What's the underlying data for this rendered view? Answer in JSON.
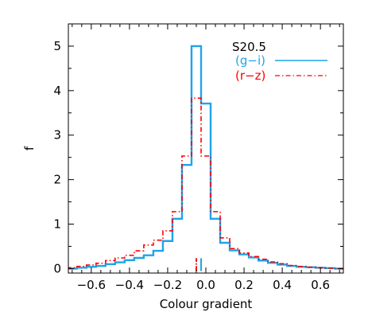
{
  "chart_data": {
    "type": "line",
    "style": "step-histogram",
    "title": "",
    "xlabel": "Colour gradient",
    "ylabel": "f",
    "xlim": [
      -0.72,
      0.72
    ],
    "ylim": [
      -0.1,
      5.5
    ],
    "x_ticks": [
      "-0.6",
      "-0.4",
      "-0.2",
      "0.0",
      "0.2",
      "0.4",
      "0.6"
    ],
    "x_tick_values": [
      -0.6,
      -0.4,
      -0.2,
      0.0,
      0.2,
      0.4,
      0.6
    ],
    "y_ticks": [
      "0",
      "1",
      "2",
      "3",
      "4",
      "5"
    ],
    "y_tick_values": [
      0,
      1,
      2,
      3,
      4,
      5
    ],
    "grid": false,
    "legend": {
      "title": "S20.5",
      "placement": "top-right",
      "entries": [
        "(g−i)",
        "(r−z)"
      ]
    },
    "bin_edges": [
      -0.725,
      -0.675,
      -0.625,
      -0.575,
      -0.525,
      -0.475,
      -0.425,
      -0.375,
      -0.325,
      -0.275,
      -0.225,
      -0.175,
      -0.125,
      -0.075,
      -0.025,
      0.025,
      0.075,
      0.125,
      0.175,
      0.225,
      0.275,
      0.325,
      0.375,
      0.425,
      0.475,
      0.525,
      0.575,
      0.625,
      0.675,
      0.725
    ],
    "series": [
      {
        "name": "(g−i)",
        "color": "#1fa4e8",
        "linestyle": "solid",
        "values": [
          0.0,
          0.02,
          0.04,
          0.06,
          0.1,
          0.14,
          0.19,
          0.24,
          0.3,
          0.4,
          0.62,
          1.12,
          2.33,
          5.0,
          3.71,
          1.12,
          0.58,
          0.41,
          0.32,
          0.25,
          0.18,
          0.13,
          0.09,
          0.06,
          0.04,
          0.03,
          0.02,
          0.01,
          0.0
        ],
        "median": -0.025
      },
      {
        "name": "(r−z)",
        "color": "#ff0000",
        "linestyle": "dash-dot",
        "values": [
          0.02,
          0.05,
          0.08,
          0.12,
          0.18,
          0.24,
          0.3,
          0.4,
          0.53,
          0.64,
          0.85,
          1.28,
          2.53,
          3.83,
          2.53,
          1.28,
          0.69,
          0.45,
          0.35,
          0.27,
          0.21,
          0.15,
          0.11,
          0.07,
          0.05,
          0.03,
          0.02,
          0.01,
          0.0
        ],
        "median": -0.05
      }
    ]
  }
}
